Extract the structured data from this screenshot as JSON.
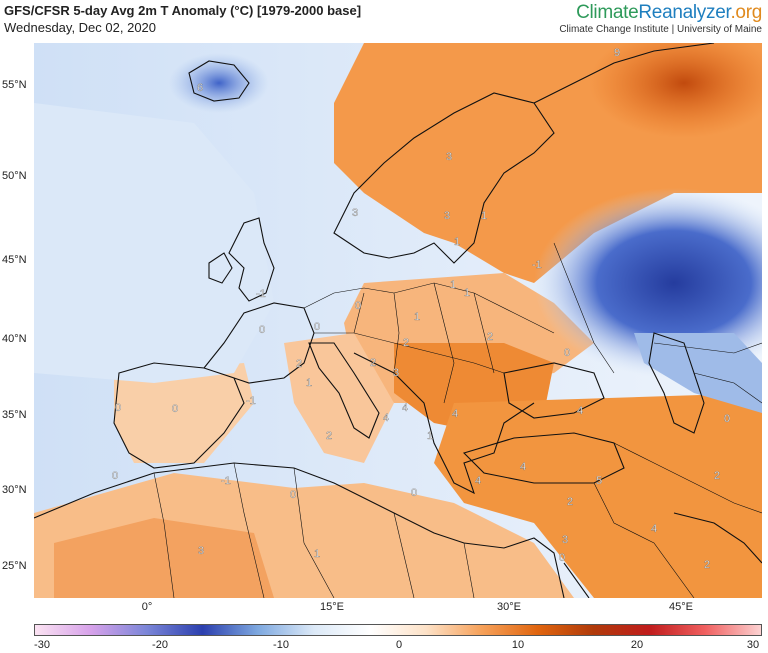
{
  "header": {
    "title": "GFS/CFSR 5-day Avg 2m T Anomaly (°C) [1979-2000 base]",
    "date": "Wednesday, Dec 02, 2020"
  },
  "brand": {
    "part1": "Climate",
    "part2": "Reanalyzer",
    "part3": ".org",
    "subtitle": "Climate Change Institute | University of Maine"
  },
  "axes": {
    "lat_labels": [
      "55°N",
      "50°N",
      "45°N",
      "40°N",
      "35°N",
      "30°N",
      "25°N"
    ],
    "lon_labels": [
      "0°",
      "15°E",
      "30°E",
      "45°E"
    ]
  },
  "colorbar": {
    "ticks": [
      "-30",
      "-20",
      "-10",
      "0",
      "10",
      "20",
      "30"
    ],
    "colors": [
      "#fbe3f2",
      "#d7a2ea",
      "#7b86d8",
      "#2b3fae",
      "#7fa9e0",
      "#dce9f7",
      "#ffffff",
      "#fde2c8",
      "#f6a15a",
      "#e0650f",
      "#b03a0a",
      "#c01c1c",
      "#f06060",
      "#fcd2d2"
    ]
  },
  "contour_labels": [
    "6",
    "9",
    "3",
    "3",
    "3",
    "1",
    "-1",
    "1",
    "-1",
    "0",
    "0",
    "0",
    "1",
    "1",
    "1",
    "2",
    "2",
    "2",
    "0",
    "2",
    "3",
    "-1",
    "1",
    "4",
    "4",
    "4",
    "4",
    "0",
    "0",
    "0",
    "0",
    "2",
    "1",
    "4",
    "-1",
    "0",
    "4",
    "5",
    "2",
    "0",
    "4",
    "3",
    "1",
    "3",
    "0",
    "2",
    "2"
  ]
}
